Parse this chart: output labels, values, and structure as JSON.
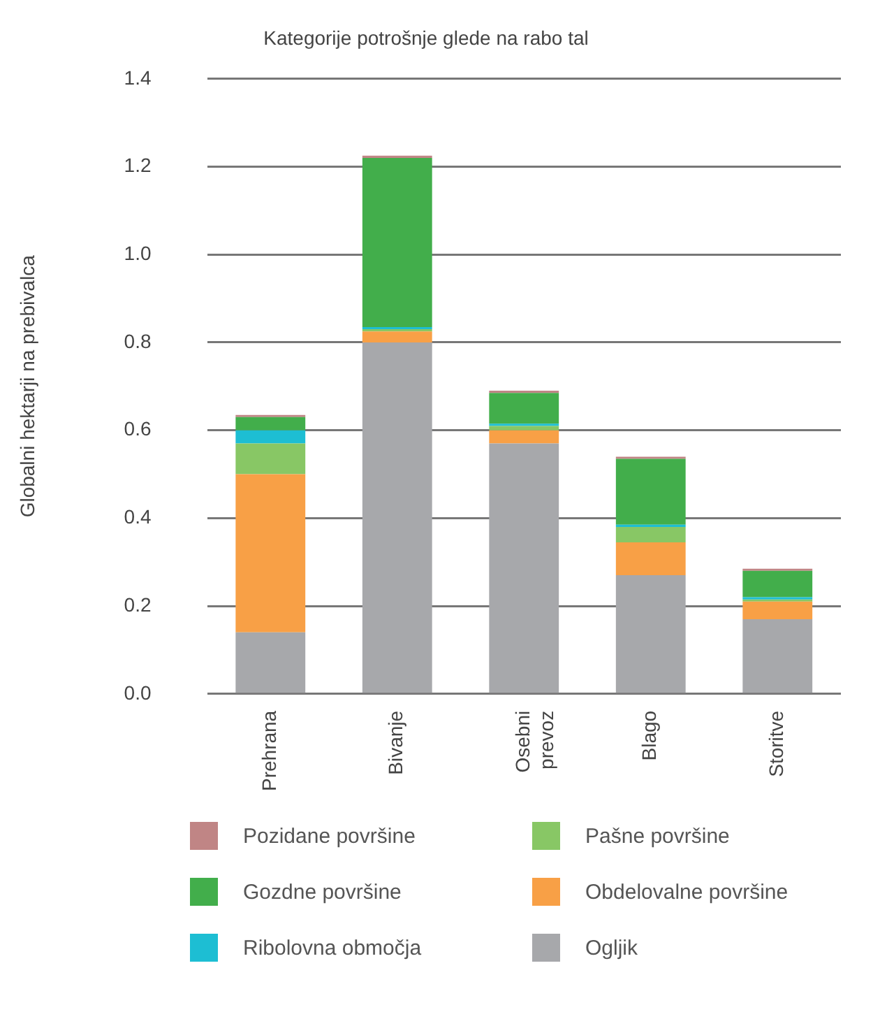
{
  "chart_data": {
    "type": "bar",
    "title": "Kategorije potrošnje glede na rabo tal",
    "ylabel": "Globalni hektarji na prebivalca",
    "categories": [
      "Prehrana",
      "Bivanje",
      "Osebni prevoz",
      "Blago",
      "Storitve"
    ],
    "stacked": true,
    "ylim": [
      0,
      1.4
    ],
    "yticks": [
      {
        "value": 0,
        "label": "0.0"
      },
      0.2,
      0.4,
      0.6,
      0.8,
      {
        "value": 1,
        "label": "1.0"
      },
      1.2,
      1.4
    ],
    "grid": "y",
    "legend": "bottom",
    "series": [
      {
        "name": "Ogljik",
        "color": "#a7a8ab",
        "values": [
          0.14,
          0.8,
          0.57,
          0.27,
          0.17
        ]
      },
      {
        "name": "Obdelovalne površine",
        "color": "#f8a046",
        "values": [
          0.36,
          0.025,
          0.03,
          0.075,
          0.04
        ]
      },
      {
        "name": "Pašne površine",
        "color": "#88c765",
        "values": [
          0.07,
          0.005,
          0.01,
          0.035,
          0.005
        ]
      },
      {
        "name": "Ribolovna območja",
        "color": "#1dbed3",
        "values": [
          0.03,
          0.005,
          0.005,
          0.005,
          0.005
        ]
      },
      {
        "name": "Gozdne površine",
        "color": "#42ae4b",
        "values": [
          0.03,
          0.385,
          0.07,
          0.15,
          0.06
        ]
      },
      {
        "name": "Pozidane površine",
        "color": "#c08585",
        "values": [
          0.005,
          0.005,
          0.005,
          0.005,
          0.005
        ]
      }
    ]
  }
}
